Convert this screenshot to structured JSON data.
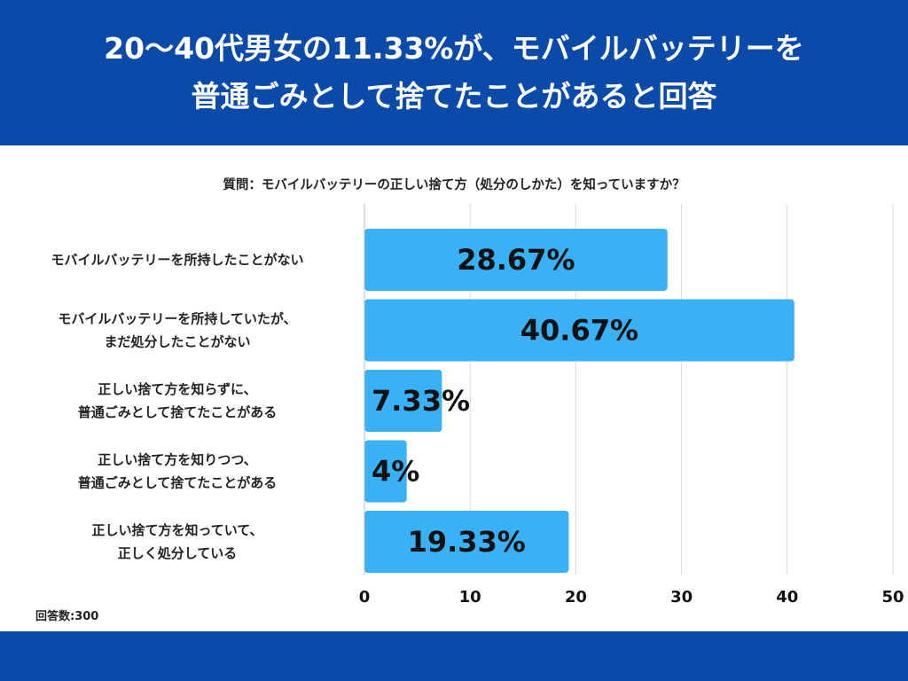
{
  "header": {
    "title_line1": "20〜40代男女の11.33%が、モバイルバッテリーを",
    "title_line2": "普通ごみとして捨てたことがあると回答"
  },
  "question": "質問：モバイルバッテリーの正しい捨て方（処分のしかた）を知っていますか？",
  "respondents": "回答数:300",
  "colors": {
    "header": "#0a4aa8",
    "bar": "#3ab0f5",
    "grid": "#d9d9d9"
  },
  "chart_data": {
    "type": "bar",
    "orientation": "horizontal",
    "categories": [
      [
        "モバイルバッテリーを所持したことがない"
      ],
      [
        "モバイルバッテリーを所持していたが、",
        "まだ処分したことがない"
      ],
      [
        "正しい捨て方を知らずに、",
        "普通ごみとして捨てたことがある"
      ],
      [
        "正しい捨て方を知りつつ、",
        "普通ごみとして捨てたことがある"
      ],
      [
        "正しい捨て方を知っていて、",
        "正しく処分している"
      ]
    ],
    "values": [
      28.67,
      40.67,
      7.33,
      4,
      19.33
    ],
    "data_labels": [
      "28.67%",
      "40.67%",
      "7.33%",
      "4%",
      "19.33%"
    ],
    "xlim": [
      0,
      50
    ],
    "xticks": [
      0,
      10,
      20,
      30,
      40,
      50
    ],
    "grid": true
  }
}
